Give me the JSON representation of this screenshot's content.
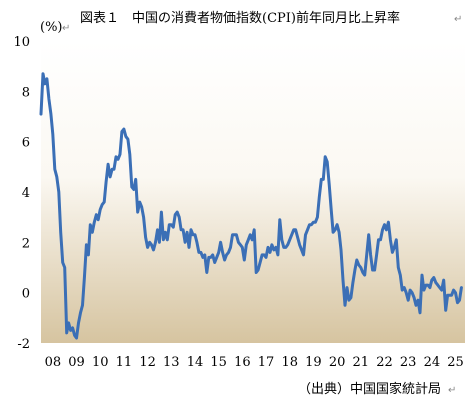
{
  "chart_data": {
    "type": "line",
    "title": "図表１　中国の消費者物価指数(CPI)前年同月比上昇率",
    "ylabel": "(%)",
    "xlabel": "",
    "source": "（出典）中国国家統計局",
    "ylim": [
      -2,
      10
    ],
    "xlim": [
      2008,
      2025.9
    ],
    "yticks": [
      -2,
      0,
      2,
      4,
      6,
      8,
      10
    ],
    "xticks": [
      {
        "value": 2008.5,
        "label": "08"
      },
      {
        "value": 2009.5,
        "label": "09"
      },
      {
        "value": 2010.5,
        "label": "10"
      },
      {
        "value": 2011.5,
        "label": "11"
      },
      {
        "value": 2012.5,
        "label": "12"
      },
      {
        "value": 2013.5,
        "label": "13"
      },
      {
        "value": 2014.5,
        "label": "14"
      },
      {
        "value": 2015.5,
        "label": "15"
      },
      {
        "value": 2016.5,
        "label": "16"
      },
      {
        "value": 2017.5,
        "label": "17"
      },
      {
        "value": 2018.5,
        "label": "18"
      },
      {
        "value": 2019.5,
        "label": "19"
      },
      {
        "value": 2020.5,
        "label": "20"
      },
      {
        "value": 2021.5,
        "label": "21"
      },
      {
        "value": 2022.5,
        "label": "22"
      },
      {
        "value": 2023.5,
        "label": "23"
      },
      {
        "value": 2024.5,
        "label": "24"
      },
      {
        "value": 2025.5,
        "label": "25"
      }
    ],
    "series": [
      {
        "color": "#3b6fb6",
        "start_year": 2008,
        "values": [
          7.1,
          8.7,
          8.3,
          8.5,
          7.7,
          7.1,
          6.3,
          4.9,
          4.6,
          4.0,
          2.4,
          1.2,
          1.0,
          -1.6,
          -1.2,
          -1.5,
          -1.4,
          -1.7,
          -1.8,
          -1.2,
          -0.8,
          -0.5,
          0.6,
          1.9,
          1.5,
          2.7,
          2.4,
          2.8,
          3.1,
          2.9,
          3.3,
          3.5,
          3.6,
          4.4,
          5.1,
          4.6,
          4.9,
          4.9,
          5.4,
          5.3,
          5.5,
          6.4,
          6.5,
          6.2,
          6.1,
          5.5,
          4.2,
          4.1,
          4.5,
          3.2,
          3.6,
          3.4,
          3.0,
          2.2,
          1.8,
          2.0,
          1.9,
          1.7,
          2.0,
          2.5,
          2.0,
          3.2,
          2.1,
          2.4,
          2.1,
          2.7,
          2.7,
          2.6,
          3.1,
          3.2,
          3.0,
          2.5,
          2.5,
          2.0,
          2.4,
          1.8,
          2.5,
          2.3,
          2.3,
          2.0,
          1.6,
          1.6,
          1.4,
          1.5,
          0.8,
          1.4,
          1.4,
          1.5,
          1.2,
          1.4,
          1.6,
          2.0,
          1.6,
          1.3,
          1.5,
          1.6,
          1.8,
          2.3,
          2.3,
          2.3,
          2.0,
          1.9,
          1.8,
          1.3,
          1.9,
          2.1,
          2.3,
          2.1,
          2.5,
          0.8,
          0.9,
          1.2,
          1.5,
          1.5,
          1.4,
          1.8,
          1.6,
          1.9,
          1.7,
          1.8,
          1.5,
          2.9,
          2.1,
          1.8,
          1.8,
          1.9,
          2.1,
          2.3,
          2.5,
          2.5,
          2.2,
          1.9,
          1.7,
          1.5,
          2.3,
          2.5,
          2.7,
          2.7,
          2.8,
          2.8,
          3.0,
          3.8,
          4.5,
          4.5,
          5.4,
          5.2,
          4.3,
          3.3,
          2.4,
          2.5,
          2.7,
          2.4,
          1.7,
          0.5,
          -0.5,
          0.2,
          -0.3,
          -0.2,
          0.4,
          0.9,
          1.3,
          1.1,
          1.0,
          0.8,
          0.7,
          1.5,
          2.3,
          1.5,
          0.9,
          0.9,
          1.5,
          2.1,
          2.1,
          2.5,
          2.7,
          2.5,
          2.8,
          2.1,
          1.6,
          1.8,
          2.1,
          1.0,
          0.7,
          0.1,
          0.2,
          0.0,
          -0.3,
          0.1,
          0.0,
          -0.2,
          -0.5,
          -0.3,
          -0.8,
          0.7,
          0.1,
          0.3,
          0.3,
          0.2,
          0.5,
          0.6,
          0.4,
          0.3,
          0.2,
          0.1,
          0.5,
          -0.7,
          -0.1,
          -0.1,
          -0.1,
          0.1,
          0.0,
          -0.4,
          -0.3,
          0.2
        ]
      }
    ]
  },
  "text_marks": [
    "↵"
  ]
}
